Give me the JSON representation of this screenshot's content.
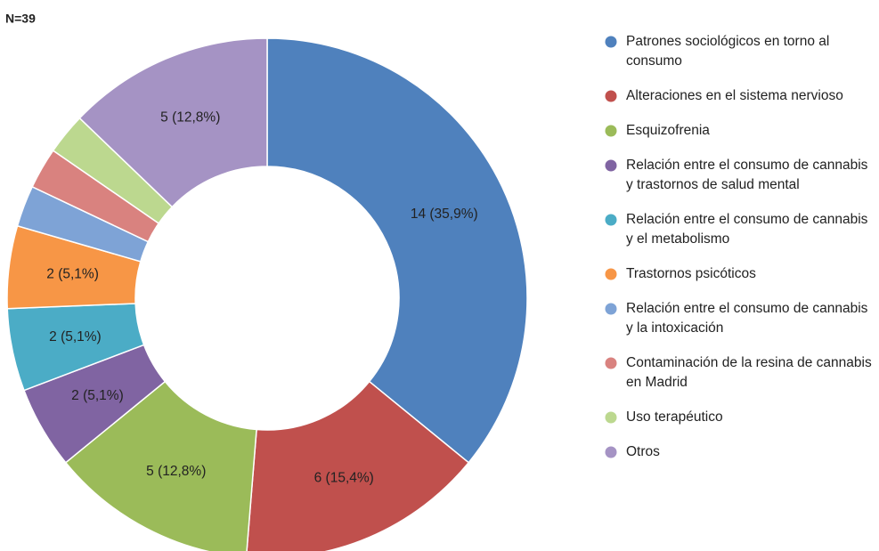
{
  "chart_data": {
    "type": "donut",
    "title": "N=39",
    "categories": [
      "Patrones sociológicos en torno al consumo",
      "Alteraciones en el sistema nervioso",
      "Esquizofrenia",
      "Relación entre el consumo de cannabis y trastornos de salud mental",
      "Relación entre el consumo de cannabis y el metabolismo",
      "Trastornos psicóticos",
      "Relación entre el consumo de cannabis y la intoxicación",
      "Contaminación de la resina de cannabis en Madrid",
      "Uso terapéutico",
      "Otros"
    ],
    "values": [
      14,
      6,
      5,
      2,
      2,
      2,
      1,
      1,
      1,
      5
    ],
    "value_labels": [
      "14 (35,9%)",
      "6 (15,4%)",
      "5 (12,8%)",
      "2 (5,1%)",
      "2 (5,1%)",
      "2 (5,1%)",
      null,
      null,
      null,
      "5 (12,8%)"
    ],
    "colors": [
      "#4f81bd",
      "#c0504d",
      "#9bbb59",
      "#8064a2",
      "#4bacc6",
      "#f79646",
      "#7ea3d6",
      "#d9827f",
      "#bcd88f",
      "#a593c4"
    ],
    "legend": "right"
  }
}
